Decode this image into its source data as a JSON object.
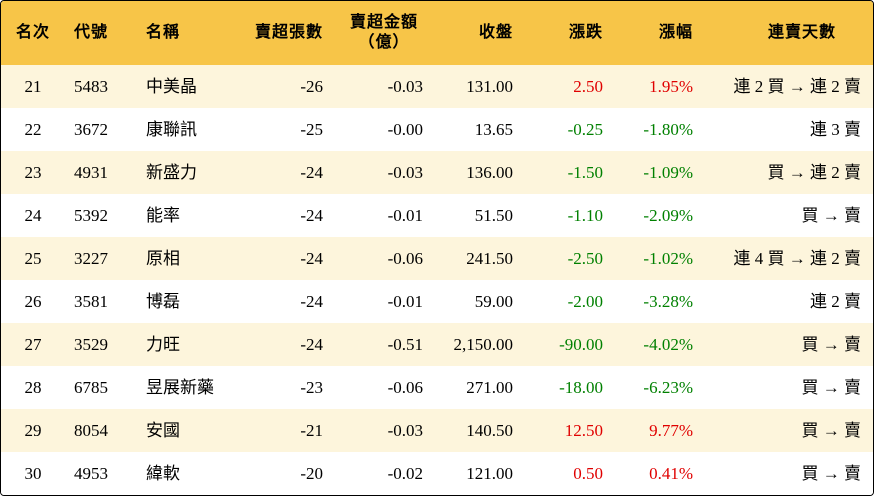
{
  "table": {
    "header": [
      [
        "名次"
      ],
      [
        "代號"
      ],
      [
        "名稱"
      ],
      [
        "賣超張數"
      ],
      [
        "賣超金額",
        "（億）"
      ],
      [
        "收盤"
      ],
      [
        "漲跌"
      ],
      [
        "漲幅"
      ],
      [
        "連賣天數"
      ]
    ],
    "rows": [
      [
        "21",
        "5483",
        "中美晶",
        "-26",
        "-0.03",
        "131.00",
        "2.50",
        "1.95%",
        "連 2 買 → 連 2 賣"
      ],
      [
        "22",
        "3672",
        "康聯訊",
        "-25",
        "-0.00",
        "13.65",
        "-0.25",
        "-1.80%",
        "連 3 賣"
      ],
      [
        "23",
        "4931",
        "新盛力",
        "-24",
        "-0.03",
        "136.00",
        "-1.50",
        "-1.09%",
        "買 → 連 2 賣"
      ],
      [
        "24",
        "5392",
        "能率",
        "-24",
        "-0.01",
        "51.50",
        "-1.10",
        "-2.09%",
        "買 → 賣"
      ],
      [
        "25",
        "3227",
        "原相",
        "-24",
        "-0.06",
        "241.50",
        "-2.50",
        "-1.02%",
        "連 4 買 → 連 2 賣"
      ],
      [
        "26",
        "3581",
        "博磊",
        "-24",
        "-0.01",
        "59.00",
        "-2.00",
        "-3.28%",
        "連 2 賣"
      ],
      [
        "27",
        "3529",
        "力旺",
        "-24",
        "-0.51",
        "2,150.00",
        "-90.00",
        "-4.02%",
        "買 → 賣"
      ],
      [
        "28",
        "6785",
        "昱展新藥",
        "-23",
        "-0.06",
        "271.00",
        "-18.00",
        "-6.23%",
        "買 → 賣"
      ],
      [
        "29",
        "8054",
        "安國",
        "-21",
        "-0.03",
        "140.50",
        "12.50",
        "9.77%",
        "買 → 賣"
      ],
      [
        "30",
        "4953",
        "緯軟",
        "-20",
        "-0.02",
        "121.00",
        "0.50",
        "0.41%",
        "買 → 賣"
      ]
    ]
  }
}
